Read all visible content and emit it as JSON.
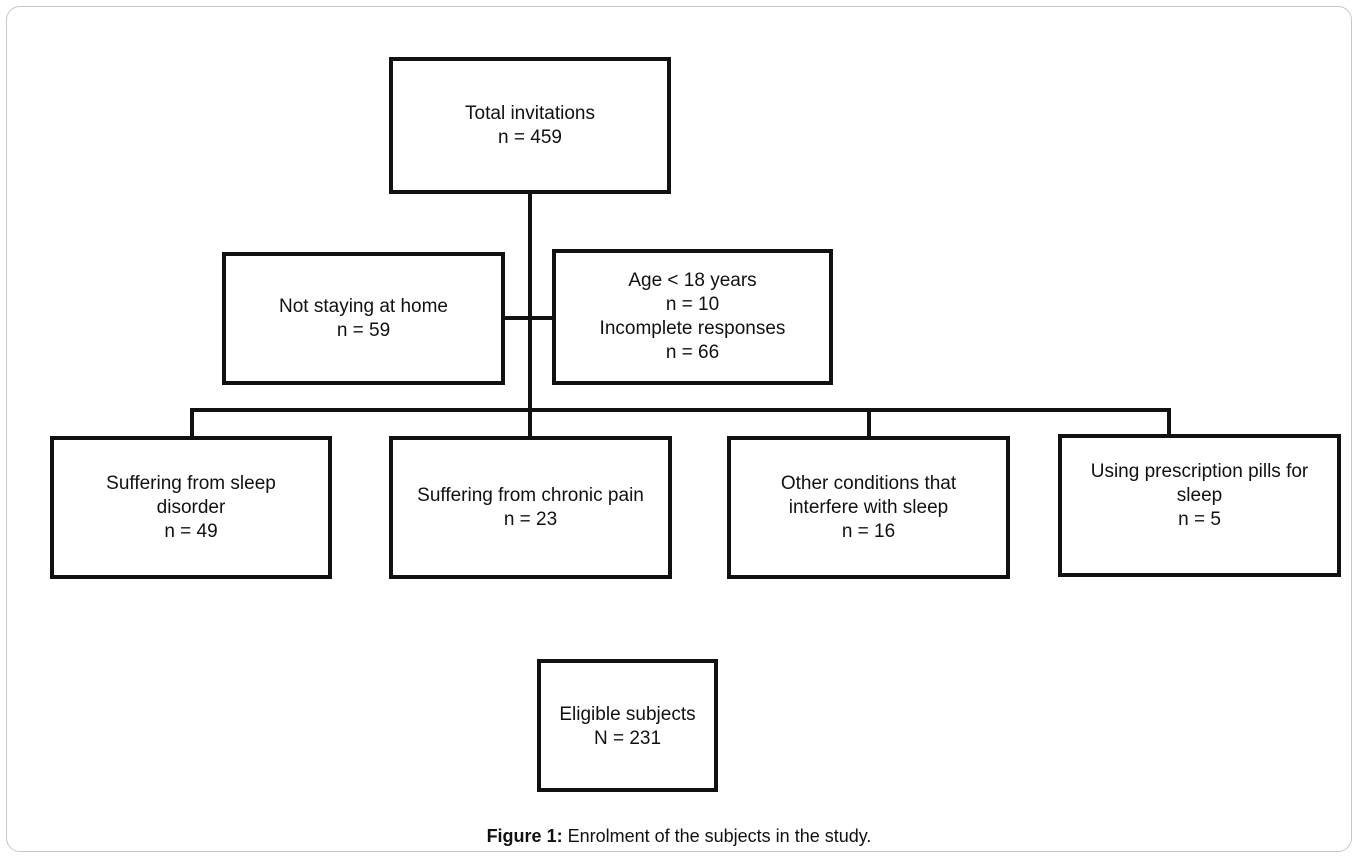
{
  "nodes": {
    "total": {
      "label": "Total invitations",
      "count": "n = 459"
    },
    "not_home": {
      "label": "Not staying at home",
      "count": "n = 59"
    },
    "age_incomplete": {
      "age_label": "Age < 18 years",
      "age_count": "n = 10",
      "incomplete_label": "Incomplete responses",
      "incomplete_count": "n = 66"
    },
    "sleep_disorder": {
      "label_line1": "Suffering from sleep",
      "label_line2": "disorder",
      "count": "n = 49"
    },
    "chronic_pain": {
      "label": "Suffering from chronic pain",
      "count": "n = 23"
    },
    "other_conditions": {
      "label_line1": "Other conditions that",
      "label_line2": "interfere with sleep",
      "count": "n = 16"
    },
    "prescription": {
      "label_line1": "Using prescription pills for",
      "label_line2": "sleep",
      "count": "n = 5"
    },
    "eligible": {
      "label": "Eligible subjects",
      "count": "N = 231"
    }
  },
  "caption": {
    "prefix": "Figure 1:",
    "text": " Enrolment of the subjects in the study."
  }
}
